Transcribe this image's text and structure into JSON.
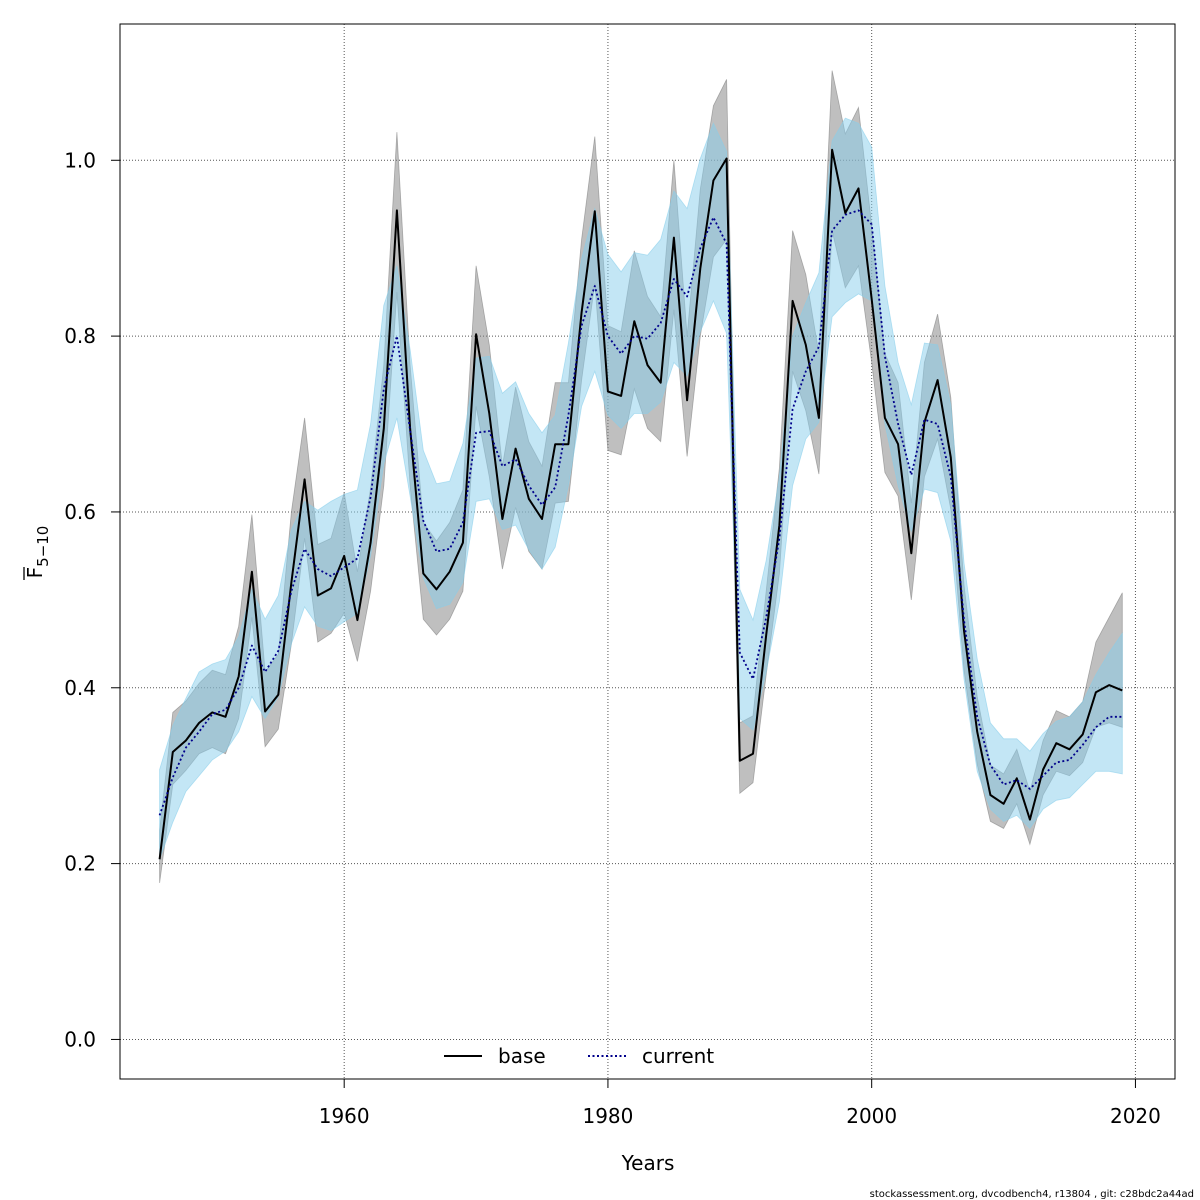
{
  "chart_data": {
    "type": "line",
    "xlabel": "Years",
    "ylabel": {
      "main": "F",
      "sub": "5−10"
    },
    "xlim": [
      1943,
      2023
    ],
    "ylim": [
      -0.045,
      1.155
    ],
    "x_ticks": [
      "1960",
      "1980",
      "2000",
      "2020"
    ],
    "y_ticks": [
      "0.0",
      "0.2",
      "0.4",
      "0.6",
      "0.8",
      "1.0"
    ],
    "grid": true,
    "legend_position": "bottom-center",
    "x": [
      1946,
      1947,
      1948,
      1949,
      1950,
      1951,
      1952,
      1953,
      1954,
      1955,
      1956,
      1957,
      1958,
      1959,
      1960,
      1961,
      1962,
      1963,
      1964,
      1965,
      1966,
      1967,
      1968,
      1969,
      1970,
      1971,
      1972,
      1973,
      1974,
      1975,
      1976,
      1977,
      1978,
      1979,
      1980,
      1981,
      1982,
      1983,
      1984,
      1985,
      1986,
      1987,
      1988,
      1989,
      1990,
      1991,
      1992,
      1993,
      1994,
      1995,
      1996,
      1997,
      1998,
      1999,
      2000,
      2001,
      2002,
      2003,
      2004,
      2005,
      2006,
      2007,
      2008,
      2009,
      2010,
      2011,
      2012,
      2013,
      2014,
      2015,
      2016,
      2017,
      2018,
      2019
    ],
    "series": [
      {
        "name": "base",
        "color": "#000000",
        "dash": "solid",
        "band_color": "#808080",
        "values": [
          0.205,
          0.327,
          0.34,
          0.36,
          0.372,
          0.367,
          0.413,
          0.532,
          0.373,
          0.392,
          0.52,
          0.637,
          0.505,
          0.513,
          0.55,
          0.477,
          0.565,
          0.695,
          0.943,
          0.695,
          0.53,
          0.512,
          0.532,
          0.565,
          0.802,
          0.712,
          0.592,
          0.672,
          0.615,
          0.592,
          0.677,
          0.677,
          0.827,
          0.942,
          0.737,
          0.732,
          0.817,
          0.767,
          0.747,
          0.912,
          0.727,
          0.877,
          0.977,
          1.002,
          0.317,
          0.325,
          0.46,
          0.585,
          0.84,
          0.79,
          0.707,
          1.012,
          0.94,
          0.968,
          0.842,
          0.707,
          0.677,
          0.553,
          0.702,
          0.75,
          0.662,
          0.465,
          0.35,
          0.278,
          0.268,
          0.297,
          0.25,
          0.307,
          0.337,
          0.33,
          0.347,
          0.395,
          0.403,
          0.397
        ],
        "lower": [
          0.178,
          0.29,
          0.306,
          0.325,
          0.332,
          0.325,
          0.365,
          0.48,
          0.333,
          0.353,
          0.45,
          0.57,
          0.452,
          0.462,
          0.485,
          0.43,
          0.51,
          0.63,
          0.85,
          0.63,
          0.478,
          0.46,
          0.478,
          0.51,
          0.72,
          0.64,
          0.535,
          0.605,
          0.555,
          0.535,
          0.61,
          0.612,
          0.75,
          0.86,
          0.67,
          0.665,
          0.74,
          0.695,
          0.68,
          0.83,
          0.663,
          0.8,
          0.89,
          0.91,
          0.28,
          0.292,
          0.415,
          0.53,
          0.76,
          0.715,
          0.643,
          0.92,
          0.855,
          0.88,
          0.77,
          0.645,
          0.618,
          0.5,
          0.64,
          0.683,
          0.603,
          0.42,
          0.313,
          0.248,
          0.24,
          0.268,
          0.222,
          0.278,
          0.305,
          0.3,
          0.315,
          0.355,
          0.36,
          0.355
        ],
        "upper": [
          0.238,
          0.372,
          0.385,
          0.405,
          0.42,
          0.415,
          0.47,
          0.597,
          0.418,
          0.438,
          0.6,
          0.707,
          0.563,
          0.57,
          0.622,
          0.532,
          0.627,
          0.767,
          1.032,
          0.767,
          0.588,
          0.567,
          0.588,
          0.625,
          0.88,
          0.79,
          0.652,
          0.742,
          0.68,
          0.652,
          0.747,
          0.747,
          0.91,
          1.027,
          0.812,
          0.805,
          0.897,
          0.845,
          0.822,
          1.0,
          0.8,
          0.967,
          1.062,
          1.092,
          0.36,
          0.368,
          0.51,
          0.65,
          0.92,
          0.87,
          0.78,
          1.102,
          1.03,
          1.06,
          0.925,
          0.78,
          0.747,
          0.61,
          0.77,
          0.825,
          0.73,
          0.517,
          0.39,
          0.312,
          0.302,
          0.33,
          0.282,
          0.34,
          0.374,
          0.367,
          0.384,
          0.452,
          0.48,
          0.508
        ]
      },
      {
        "name": "current",
        "color": "#00008b",
        "dash": "dotted",
        "band_color": "#87ceeb",
        "values": [
          0.255,
          0.298,
          0.332,
          0.35,
          0.37,
          0.375,
          0.4,
          0.448,
          0.418,
          0.442,
          0.51,
          0.558,
          0.535,
          0.527,
          0.537,
          0.547,
          0.617,
          0.74,
          0.8,
          0.693,
          0.59,
          0.555,
          0.558,
          0.588,
          0.69,
          0.692,
          0.652,
          0.66,
          0.63,
          0.608,
          0.628,
          0.71,
          0.812,
          0.857,
          0.8,
          0.78,
          0.8,
          0.797,
          0.815,
          0.865,
          0.845,
          0.9,
          0.935,
          0.905,
          0.44,
          0.41,
          0.48,
          0.57,
          0.717,
          0.76,
          0.788,
          0.92,
          0.938,
          0.943,
          0.927,
          0.777,
          0.7,
          0.642,
          0.705,
          0.7,
          0.64,
          0.477,
          0.367,
          0.312,
          0.29,
          0.295,
          0.285,
          0.3,
          0.315,
          0.318,
          0.335,
          0.355,
          0.367,
          0.367
        ],
        "lower": [
          0.205,
          0.247,
          0.282,
          0.3,
          0.318,
          0.328,
          0.35,
          0.39,
          0.365,
          0.39,
          0.45,
          0.492,
          0.47,
          0.465,
          0.475,
          0.485,
          0.55,
          0.655,
          0.707,
          0.618,
          0.525,
          0.49,
          0.495,
          0.52,
          0.612,
          0.615,
          0.58,
          0.585,
          0.557,
          0.535,
          0.56,
          0.63,
          0.72,
          0.76,
          0.71,
          0.695,
          0.712,
          0.712,
          0.725,
          0.77,
          0.755,
          0.805,
          0.84,
          0.803,
          0.365,
          0.352,
          0.418,
          0.498,
          0.63,
          0.683,
          0.702,
          0.822,
          0.838,
          0.848,
          0.84,
          0.7,
          0.63,
          0.578,
          0.626,
          0.622,
          0.567,
          0.41,
          0.305,
          0.262,
          0.248,
          0.255,
          0.24,
          0.262,
          0.272,
          0.275,
          0.29,
          0.305,
          0.305,
          0.302
        ],
        "upper": [
          0.307,
          0.357,
          0.388,
          0.418,
          0.427,
          0.432,
          0.458,
          0.512,
          0.478,
          0.505,
          0.58,
          0.612,
          0.602,
          0.612,
          0.62,
          0.625,
          0.7,
          0.835,
          0.88,
          0.785,
          0.67,
          0.632,
          0.635,
          0.678,
          0.775,
          0.777,
          0.735,
          0.748,
          0.712,
          0.69,
          0.71,
          0.792,
          0.888,
          0.945,
          0.893,
          0.873,
          0.895,
          0.892,
          0.91,
          0.965,
          0.945,
          1.002,
          1.042,
          1.01,
          0.512,
          0.477,
          0.545,
          0.64,
          0.8,
          0.838,
          0.872,
          1.022,
          1.048,
          1.042,
          1.015,
          0.857,
          0.77,
          0.722,
          0.792,
          0.79,
          0.722,
          0.542,
          0.433,
          0.36,
          0.342,
          0.342,
          0.328,
          0.348,
          0.362,
          0.367,
          0.384,
          0.415,
          0.44,
          0.462
        ]
      }
    ]
  },
  "footer": "stockassessment.org, dvcodbench4, r13804 , git: c28bdc2a44ad"
}
